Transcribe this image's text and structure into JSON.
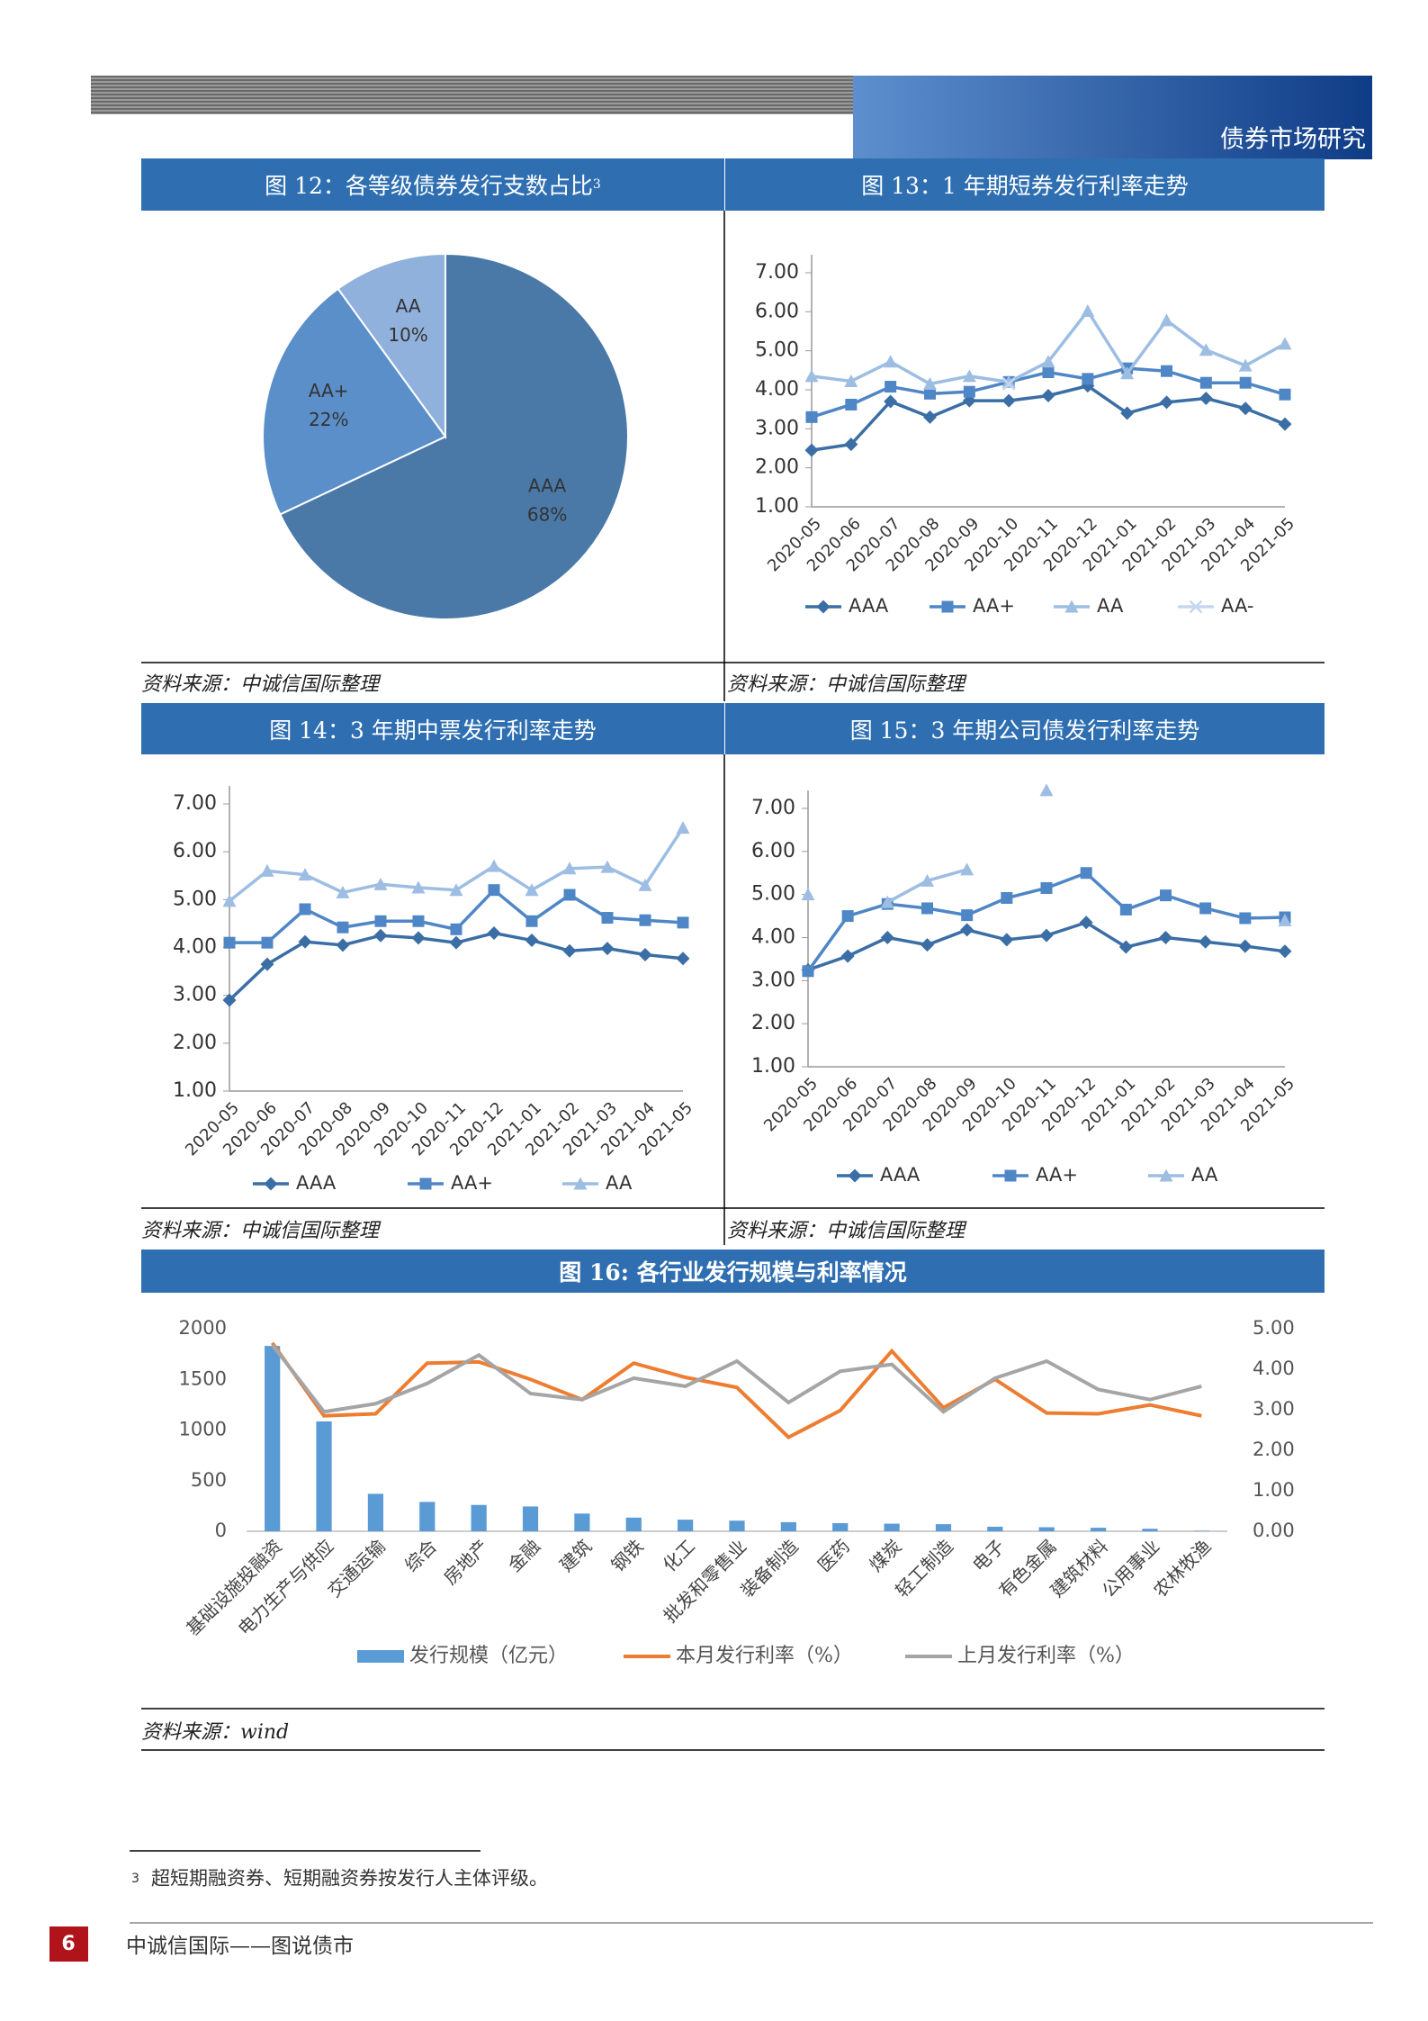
{
  "header": {
    "title": "债券市场研究"
  },
  "chart_data": [
    {
      "type": "pie",
      "title": "图 12：各等级债券发行支数占比",
      "title_note": "3",
      "categories": [
        "AAA",
        "AA+",
        "AA"
      ],
      "values": [
        68,
        22,
        10
      ],
      "value_labels": [
        "68%",
        "22%",
        "10%"
      ],
      "colors": [
        "#4a79a8",
        "#5b8fca",
        "#8fb1dc"
      ],
      "source": "资料来源：中诚信国际整理"
    },
    {
      "type": "line",
      "title": "图 13：1 年期短券发行利率走势",
      "categories": [
        "2020-05",
        "2020-06",
        "2020-07",
        "2020-08",
        "2020-09",
        "2020-10",
        "2020-11",
        "2020-12",
        "2021-01",
        "2021-02",
        "2021-03",
        "2021-04",
        "2021-05"
      ],
      "series": [
        {
          "name": "AAA",
          "color": "#3a6ea5",
          "marker": "diamond",
          "values": [
            2.45,
            2.6,
            3.7,
            3.3,
            3.72,
            3.72,
            3.85,
            4.1,
            3.4,
            3.68,
            3.78,
            3.52,
            3.12
          ]
        },
        {
          "name": "AA+",
          "color": "#4f86c6",
          "marker": "square",
          "values": [
            3.3,
            3.62,
            4.08,
            3.9,
            3.95,
            4.2,
            4.45,
            4.28,
            4.55,
            4.48,
            4.18,
            4.18,
            3.88
          ]
        },
        {
          "name": "AA",
          "color": "#9dbde3",
          "marker": "triangle",
          "values": [
            4.35,
            4.22,
            4.72,
            4.15,
            4.35,
            4.2,
            4.72,
            6.02,
            4.42,
            5.78,
            5.02,
            4.62,
            5.18
          ]
        },
        {
          "name": "AA-",
          "color": "#c5d7ee",
          "marker": "x",
          "values": [
            null,
            null,
            null,
            null,
            null,
            4.15,
            null,
            null,
            null,
            null,
            null,
            null,
            null
          ]
        }
      ],
      "ylim": [
        1,
        7
      ],
      "yticks": [
        {
          "value": 1,
          "label": "1.00"
        },
        {
          "value": 2,
          "label": "2.00"
        },
        {
          "value": 3,
          "label": "3.00"
        },
        {
          "value": 4,
          "label": "4.00"
        },
        {
          "value": 5,
          "label": "5.00"
        },
        {
          "value": 6,
          "label": "6.00"
        },
        {
          "value": 7,
          "label": "7.00"
        }
      ],
      "grid": false,
      "legend": "bottom",
      "source": "资料来源：中诚信国际整理"
    },
    {
      "type": "line",
      "title": "图 14：3 年期中票发行利率走势",
      "categories": [
        "2020-05",
        "2020-06",
        "2020-07",
        "2020-08",
        "2020-09",
        "2020-10",
        "2020-11",
        "2020-12",
        "2021-01",
        "2021-02",
        "2021-03",
        "2021-04",
        "2021-05"
      ],
      "series": [
        {
          "name": "AAA",
          "color": "#3a6ea5",
          "marker": "diamond",
          "values": [
            2.9,
            3.65,
            4.12,
            4.05,
            4.25,
            4.2,
            4.1,
            4.3,
            4.15,
            3.93,
            3.98,
            3.85,
            3.77
          ]
        },
        {
          "name": "AA+",
          "color": "#4f86c6",
          "marker": "square",
          "values": [
            4.1,
            4.1,
            4.8,
            4.42,
            4.55,
            4.55,
            4.38,
            5.2,
            4.55,
            5.1,
            4.62,
            4.57,
            4.52
          ]
        },
        {
          "name": "AA",
          "color": "#9dbde3",
          "marker": "triangle",
          "values": [
            4.97,
            5.6,
            5.52,
            5.15,
            5.32,
            5.25,
            5.2,
            5.7,
            5.2,
            5.65,
            5.68,
            5.3,
            6.5
          ]
        }
      ],
      "ylim": [
        1,
        7
      ],
      "yticks": [
        {
          "value": 1,
          "label": "1.00"
        },
        {
          "value": 2,
          "label": "2.00"
        },
        {
          "value": 3,
          "label": "3.00"
        },
        {
          "value": 4,
          "label": "4.00"
        },
        {
          "value": 5,
          "label": "5.00"
        },
        {
          "value": 6,
          "label": "6.00"
        },
        {
          "value": 7,
          "label": "7.00"
        }
      ],
      "grid": false,
      "legend": "bottom",
      "source": "资料来源：中诚信国际整理"
    },
    {
      "type": "line",
      "title": "图 15：3 年期公司债发行利率走势",
      "categories": [
        "2020-05",
        "2020-06",
        "2020-07",
        "2020-08",
        "2020-09",
        "2020-10",
        "2020-11",
        "2020-12",
        "2021-01",
        "2021-02",
        "2021-03",
        "2021-04",
        "2021-05"
      ],
      "series": [
        {
          "name": "AAA",
          "color": "#3a6ea5",
          "marker": "diamond",
          "values": [
            3.25,
            3.57,
            4.0,
            3.83,
            4.18,
            3.95,
            4.05,
            4.35,
            3.78,
            4.0,
            3.9,
            3.8,
            3.68
          ]
        },
        {
          "name": "AA+",
          "color": "#4f86c6",
          "marker": "square",
          "values": [
            3.22,
            4.5,
            4.78,
            4.68,
            4.52,
            4.92,
            5.15,
            5.5,
            4.65,
            4.98,
            4.68,
            4.45,
            4.47
          ]
        },
        {
          "name": "AA",
          "color": "#9dbde3",
          "marker": "triangle",
          "values": [
            5.0,
            null,
            4.82,
            5.32,
            5.58,
            null,
            7.42,
            null,
            null,
            null,
            null,
            null,
            4.4
          ]
        }
      ],
      "ylim": [
        1,
        7
      ],
      "yticks": [
        {
          "value": 1,
          "label": "1.00"
        },
        {
          "value": 2,
          "label": "2.00"
        },
        {
          "value": 3,
          "label": "3.00"
        },
        {
          "value": 4,
          "label": "4.00"
        },
        {
          "value": 5,
          "label": "5.00"
        },
        {
          "value": 6,
          "label": "6.00"
        },
        {
          "value": 7,
          "label": "7.00"
        }
      ],
      "grid": false,
      "legend": "bottom",
      "source": "资料来源：中诚信国际整理"
    },
    {
      "type": "combo",
      "title": "图 16:  各行业发行规模与利率情况",
      "categories": [
        "基础设施投融资",
        "电力生产与供应",
        "交通运输",
        "综合",
        "房地产",
        "金融",
        "建筑",
        "钢铁",
        "化工",
        "批发和零售业",
        "装备制造",
        "医药",
        "煤炭",
        "轻工制造",
        "电子",
        "有色金属",
        "建筑材料",
        "公用事业",
        "农林牧渔"
      ],
      "series": [
        {
          "name": "发行规模（亿元）",
          "type": "bar",
          "color": "#5b9bd5",
          "values": [
            1830,
            1085,
            370,
            290,
            260,
            245,
            175,
            135,
            115,
            105,
            90,
            80,
            75,
            70,
            45,
            40,
            35,
            25,
            5
          ]
        },
        {
          "name": "本月发行利率（%）",
          "type": "line",
          "axis": "y2",
          "color": "#ed7d31",
          "values": [
            4.65,
            2.85,
            2.9,
            4.15,
            4.18,
            3.75,
            3.25,
            4.15,
            3.8,
            3.55,
            2.32,
            2.98,
            4.45,
            3.05,
            3.75,
            2.92,
            2.9,
            3.12,
            2.85
          ]
        },
        {
          "name": "上月发行利率（%）",
          "type": "line",
          "axis": "y2",
          "color": "#a5a5a5",
          "values": [
            4.6,
            2.95,
            3.15,
            3.65,
            4.35,
            3.4,
            3.25,
            3.78,
            3.58,
            4.2,
            3.18,
            3.95,
            4.12,
            2.95,
            3.78,
            4.2,
            3.5,
            3.25,
            3.58
          ]
        }
      ],
      "ylim": [
        0,
        2000
      ],
      "yticks": [
        0,
        500,
        1000,
        1500,
        2000
      ],
      "y2lim": [
        0,
        5
      ],
      "y2ticks": [
        {
          "value": 0,
          "label": "0.00"
        },
        {
          "value": 1,
          "label": "1.00"
        },
        {
          "value": 2,
          "label": "2.00"
        },
        {
          "value": 3,
          "label": "3.00"
        },
        {
          "value": 4,
          "label": "4.00"
        },
        {
          "value": 5,
          "label": "5.00"
        }
      ],
      "grid": false,
      "legend": "bottom",
      "source": "资料来源：wind"
    }
  ],
  "footnote": {
    "number": "3",
    "text": "超短期融资券、短期融资券按发行人主体评级。"
  },
  "footer": {
    "page": "6",
    "text": "中诚信国际——图说债市"
  }
}
